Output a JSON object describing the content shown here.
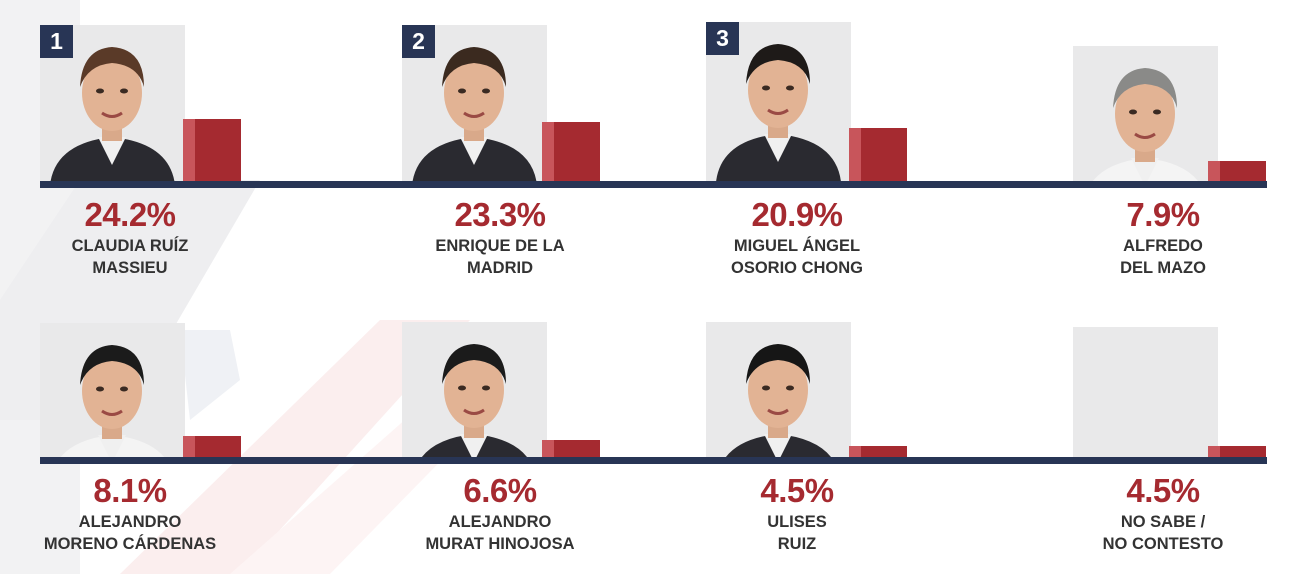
{
  "colors": {
    "bar": "#a52a30",
    "bar_face": "#c8555b",
    "baseline": "#283555",
    "rank_badge": "#283555",
    "percent_text": "#a52a30",
    "name_text": "#333333"
  },
  "chart_data": {
    "type": "bar",
    "categories": [
      "CLAUDIA RUÍZ MASSIEU",
      "ENRIQUE DE LA MADRID",
      "MIGUEL ÁNGEL OSORIO CHONG",
      "ALFREDO DEL MAZO",
      "ALEJANDRO MORENO CÁRDENAS",
      "ALEJANDRO MURAT HINOJOSA",
      "ULISES RUIZ",
      "NO SABE / NO CONTESTO"
    ],
    "values": [
      24.2,
      23.3,
      20.9,
      7.9,
      8.1,
      6.6,
      4.5,
      4.5
    ],
    "candidates": [
      {
        "rank": "1",
        "value": 24.2,
        "pct_label": "24.2%",
        "name_lines": [
          "CLAUDIA RUÍZ",
          "MASSIEU"
        ],
        "has_photo": true
      },
      {
        "rank": "2",
        "value": 23.3,
        "pct_label": "23.3%",
        "name_lines": [
          "ENRIQUE DE LA",
          "MADRID"
        ],
        "has_photo": true
      },
      {
        "rank": "3",
        "value": 20.9,
        "pct_label": "20.9%",
        "name_lines": [
          "MIGUEL ÁNGEL",
          "OSORIO CHONG"
        ],
        "has_photo": true
      },
      {
        "rank": null,
        "value": 7.9,
        "pct_label": "7.9%",
        "name_lines": [
          "ALFREDO",
          "DEL MAZO"
        ],
        "has_photo": true
      },
      {
        "rank": null,
        "value": 8.1,
        "pct_label": "8.1%",
        "name_lines": [
          "ALEJANDRO",
          "MORENO CÁRDENAS"
        ],
        "has_photo": true
      },
      {
        "rank": null,
        "value": 6.6,
        "pct_label": "6.6%",
        "name_lines": [
          "ALEJANDRO",
          "MURAT HINOJOSA"
        ],
        "has_photo": true
      },
      {
        "rank": null,
        "value": 4.5,
        "pct_label": "4.5%",
        "name_lines": [
          "ULISES",
          "RUIZ"
        ],
        "has_photo": true
      },
      {
        "rank": null,
        "value": 4.5,
        "pct_label": "4.5%",
        "name_lines": [
          "NO SABE /",
          "NO CONTESTO"
        ],
        "has_photo": false
      }
    ]
  }
}
